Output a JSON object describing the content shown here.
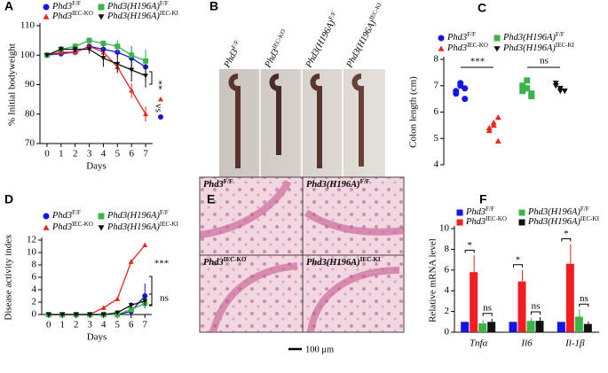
{
  "panel_labels": [
    "A",
    "B",
    "C",
    "D",
    "E",
    "F"
  ],
  "panel_b": {
    "labels": [
      {
        "base": "Phd3",
        "sup": "F/F"
      },
      {
        "base": "Phd3",
        "sup": "IEC-KO"
      },
      {
        "base": "Phd3(H196A)",
        "sup": "F/F"
      },
      {
        "base": "Phd3(H196A)",
        "sup": "IEC-KI"
      }
    ]
  },
  "panel_e": {
    "labels": [
      {
        "base": "Phd3",
        "sup": "F/F"
      },
      {
        "base": "Phd3(H196A)",
        "sup": "F/F"
      },
      {
        "base": "Phd3",
        "sup": "IEC-KO"
      },
      {
        "base": "Phd3(H196A)",
        "sup": "IEC-KI"
      }
    ],
    "scale_bar": "100 μm"
  },
  "chart_data": [
    {
      "type": "line",
      "ylabel": "% Initial bodyweight",
      "xlabel": "Days",
      "x": [
        0,
        1,
        2,
        3,
        4,
        5,
        6,
        7
      ],
      "xlim": [
        -0.5,
        7.5
      ],
      "xticks": [
        0,
        1,
        2,
        3,
        4,
        5,
        6,
        7
      ],
      "ylim": [
        70,
        110
      ],
      "yticks": [
        70,
        80,
        90,
        100,
        110
      ],
      "annotations": [
        "**",
        "vs"
      ],
      "series": [
        {
          "name": "Phd3",
          "sup": "F/F",
          "color": "#1414e6",
          "marker": "circle",
          "values": [
            100,
            100.5,
            101,
            103,
            102,
            101,
            99,
            96
          ],
          "errors": [
            0.5,
            1,
            1,
            1,
            1.5,
            2,
            4,
            5
          ]
        },
        {
          "name": "Phd3",
          "sup": "IEC-KO",
          "color": "#e8261e",
          "marker": "triangle",
          "values": [
            100,
            101,
            101,
            103,
            101,
            96,
            88,
            80
          ],
          "errors": [
            0.5,
            1,
            1,
            1,
            1.5,
            2,
            2.5,
            2.5
          ]
        },
        {
          "name": "Phd3(H196A)",
          "sup": "F/F",
          "color": "#3cb44b",
          "marker": "square",
          "values": [
            100,
            102,
            103,
            105,
            104,
            103,
            100,
            98
          ],
          "errors": [
            0.5,
            1,
            1,
            1,
            1,
            2,
            3,
            4
          ]
        },
        {
          "name": "Phd3(H196A)",
          "sup": "IEC-KI",
          "color": "#111111",
          "marker": "tridown",
          "values": [
            100,
            102,
            102,
            102,
            99,
            97,
            95,
            93
          ],
          "errors": [
            0.5,
            1,
            1,
            1.5,
            3,
            3,
            4,
            4
          ]
        }
      ]
    },
    {
      "type": "strip",
      "ylabel": "Colon length (cm)",
      "ylim": [
        4,
        8
      ],
      "yticks": [
        4,
        5,
        6,
        7,
        8
      ],
      "annotations": [
        "***",
        "ns"
      ],
      "series": [
        {
          "name": "Phd3",
          "sup": "F/F",
          "color": "#1414e6",
          "marker": "circle",
          "values": [
            6.8,
            7.0,
            6.9,
            6.7,
            7.1,
            6.5
          ]
        },
        {
          "name": "Phd3",
          "sup": "IEC-KO",
          "color": "#e8261e",
          "marker": "triangle",
          "values": [
            5.4,
            5.6,
            5.8,
            5.3,
            5.5,
            4.9
          ]
        },
        {
          "name": "Phd3(H196A)",
          "sup": "F/F",
          "color": "#3cb44b",
          "marker": "square",
          "values": [
            7.0,
            6.9,
            6.6,
            6.8,
            7.2,
            6.7
          ]
        },
        {
          "name": "Phd3(H196A)",
          "sup": "IEC-KI",
          "color": "#111111",
          "marker": "tridown",
          "values": [
            7.0,
            6.9,
            6.8,
            7.1,
            6.8
          ]
        }
      ]
    },
    {
      "type": "line",
      "ylabel": "Disease activity index",
      "xlabel": "Days",
      "x": [
        0,
        1,
        2,
        3,
        4,
        5,
        6,
        7
      ],
      "xlim": [
        -0.5,
        7.5
      ],
      "xticks": [
        0,
        1,
        2,
        3,
        4,
        5,
        6,
        7
      ],
      "ylim": [
        0,
        12
      ],
      "yticks": [
        0,
        2,
        4,
        6,
        8,
        10,
        12
      ],
      "annotations": [
        "***",
        "ns"
      ],
      "series": [
        {
          "name": "Phd3",
          "sup": "F/F",
          "color": "#1414e6",
          "marker": "circle",
          "values": [
            0,
            0,
            0,
            0,
            0,
            0,
            0.5,
            3
          ],
          "errors": [
            0,
            0,
            0,
            0,
            0,
            0,
            0.4,
            2
          ]
        },
        {
          "name": "Phd3",
          "sup": "IEC-KO",
          "color": "#e8261e",
          "marker": "triangle",
          "values": [
            0,
            0,
            0,
            0,
            1.1,
            2.5,
            8.5,
            11.2
          ],
          "errors": [
            0,
            0,
            0,
            0,
            0.2,
            0.3,
            0.4,
            0.3
          ]
        },
        {
          "name": "Phd3(H196A)",
          "sup": "F/F",
          "color": "#3cb44b",
          "marker": "square",
          "values": [
            0,
            0,
            0,
            0,
            0,
            0,
            0.8,
            1.8
          ],
          "errors": [
            0,
            0,
            0,
            0,
            0,
            0,
            0.4,
            0.8
          ]
        },
        {
          "name": "Phd3(H196A)",
          "sup": "IEC-KI",
          "color": "#111111",
          "marker": "tridown",
          "values": [
            0,
            0,
            0,
            0,
            0,
            0.3,
            1.5,
            2.2
          ],
          "errors": [
            0,
            0,
            0,
            0,
            0,
            0.2,
            0.5,
            0.8
          ]
        }
      ]
    },
    {
      "type": "bar",
      "ylabel": "Relative mRNA level",
      "categories": [
        "Tnfα",
        "Il6",
        "Il-1β"
      ],
      "ylim": [
        0,
        10
      ],
      "yticks": [
        0,
        2,
        4,
        6,
        8,
        10
      ],
      "annotations": [
        "*",
        "ns",
        "*",
        "ns",
        "*",
        "ns"
      ],
      "series": [
        {
          "name": "Phd3",
          "sup": "F/F",
          "color": "#1414e6",
          "marker": "square",
          "values": [
            1,
            1,
            1
          ],
          "errors": [
            0,
            0,
            0
          ]
        },
        {
          "name": "Phd3",
          "sup": "IEC-KO",
          "color": "#f01e1e",
          "marker": "square",
          "values": [
            5.8,
            4.9,
            6.6
          ],
          "errors": [
            1.6,
            1.1,
            1.9
          ]
        },
        {
          "name": "Phd3(H196A)",
          "sup": "F/F",
          "color": "#3cb44b",
          "marker": "square",
          "values": [
            0.85,
            1.1,
            1.5
          ],
          "errors": [
            0.35,
            0.3,
            0.7
          ]
        },
        {
          "name": "Phd3(H196A)",
          "sup": "IEC-KI",
          "color": "#111111",
          "marker": "square",
          "values": [
            1.0,
            1.1,
            0.8
          ],
          "errors": [
            0.3,
            0.35,
            0.25
          ]
        }
      ]
    }
  ]
}
